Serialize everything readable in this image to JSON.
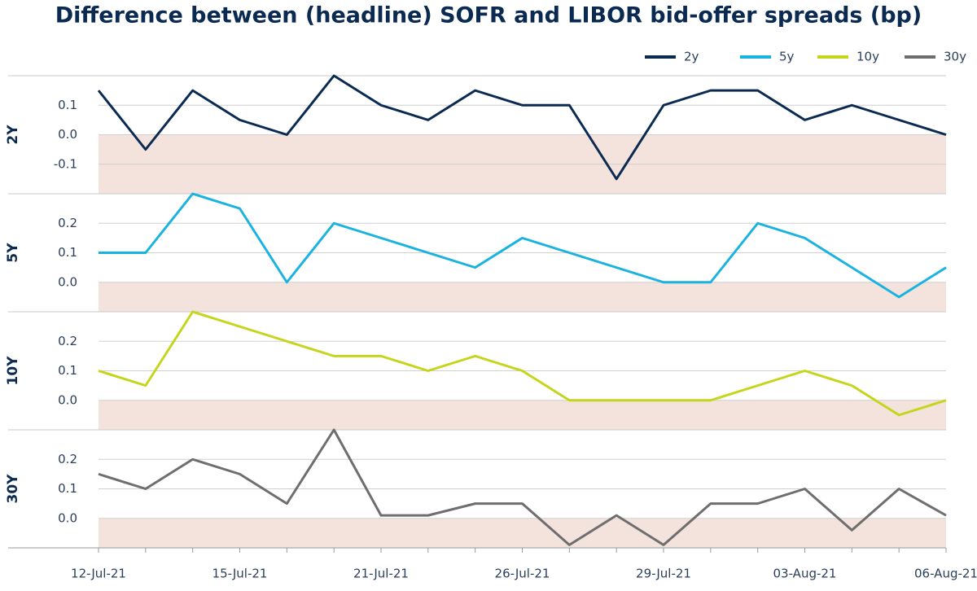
{
  "chart_data": {
    "type": "line",
    "title": "Difference between (headline) SOFR and LIBOR bid-offer spreads (bp)",
    "categories": [
      "12-Jul-21",
      null,
      null,
      "15-Jul-21",
      null,
      null,
      "21-Jul-21",
      null,
      null,
      "26-Jul-21",
      null,
      null,
      "29-Jul-21",
      null,
      null,
      "03-Aug-21",
      null,
      null,
      "06-Aug-21"
    ],
    "series": [
      {
        "name": "2y",
        "label": "2Y",
        "color": "#0b2a52",
        "ylim": [
          -0.2,
          0.2
        ],
        "yticks": [
          -0.1,
          {
            "value": 0,
            "label": "0.0"
          },
          0.1
        ],
        "values": [
          0.15,
          -0.05,
          0.15,
          0.05,
          0,
          0.2,
          0.1,
          0.05,
          0.15,
          0.1,
          0.1,
          -0.15,
          0.1,
          0.15,
          0.15,
          0.05,
          0.1,
          0.05,
          0
        ]
      },
      {
        "name": "5y",
        "label": "5Y",
        "color": "#1ab3e0",
        "ylim": [
          -0.1,
          0.3
        ],
        "yticks": [
          {
            "value": 0,
            "label": "0.0"
          },
          0.1,
          0.2
        ],
        "values": [
          0.1,
          0.1,
          0.3,
          0.25,
          0,
          0.2,
          0.15,
          0.1,
          0.05,
          0.15,
          0.1,
          0.05,
          0,
          0,
          0.2,
          0.15,
          0.05,
          -0.05,
          0.05
        ]
      },
      {
        "name": "10y",
        "label": "10Y",
        "color": "#c5d51c",
        "ylim": [
          -0.1,
          0.3
        ],
        "yticks": [
          {
            "value": 0,
            "label": "0.0"
          },
          0.1,
          0.2
        ],
        "values": [
          0.1,
          0.05,
          0.3,
          0.25,
          0.2,
          0.15,
          0.15,
          0.1,
          0.15,
          0.1,
          0,
          0,
          0,
          0,
          0.05,
          0.1,
          0.05,
          -0.05,
          0
        ]
      },
      {
        "name": "30y",
        "label": "30Y",
        "color": "#6e6e6e",
        "ylim": [
          -0.1,
          0.3
        ],
        "yticks": [
          {
            "value": 0,
            "label": "0.0"
          },
          0.1,
          0.2
        ],
        "values": [
          0.15,
          0.1,
          0.2,
          0.15,
          0.05,
          0.3,
          0.01,
          0.01,
          0.05,
          0.05,
          -0.09,
          0.01,
          -0.09,
          0.05,
          0.05,
          0.1,
          -0.04,
          0.1,
          0.01
        ]
      }
    ]
  }
}
